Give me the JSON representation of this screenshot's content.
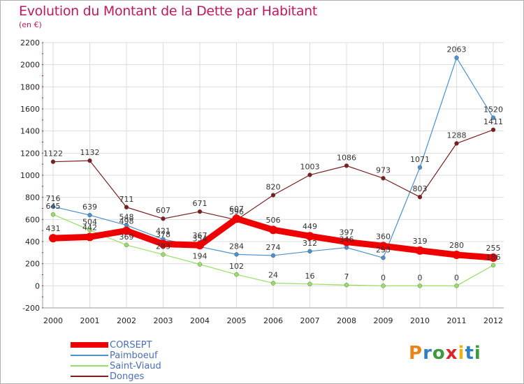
{
  "title": "Evolution du Montant de la Dette par Habitant",
  "subtitle": "(en €)",
  "logo": {
    "text": "Proxiti",
    "letter_colors": [
      "#e8841a",
      "#2e7fc4",
      "#3c9a3c",
      "#d8262b",
      "#e8b21a",
      "#2e7fc4",
      "#3c9a3c"
    ]
  },
  "chart_data": {
    "type": "line",
    "x": [
      "2000",
      "2001",
      "2002",
      "2003",
      "2004",
      "2005",
      "2006",
      "2007",
      "2008",
      "2009",
      "2010",
      "2011",
      "2012"
    ],
    "ylim": [
      -200,
      2200
    ],
    "yticks": [
      -200,
      0,
      200,
      400,
      600,
      800,
      1000,
      1200,
      1400,
      1600,
      1800,
      2000,
      2200
    ],
    "grid": true,
    "legend_position": "bottom-left",
    "series": [
      {
        "name": "CORSEPT",
        "color": "#ee0000",
        "values": [
          431,
          442,
          498,
          378,
          367,
          607,
          506,
          449,
          397,
          360,
          319,
          280,
          255
        ]
      },
      {
        "name": "Paimboeuf",
        "color": "#4d90cc",
        "values": [
          716,
          639,
          548,
          421,
          354,
          284,
          274,
          312,
          346,
          253,
          1071,
          2063,
          1520
        ]
      },
      {
        "name": "Saint-Viaud",
        "color": "#99dd66",
        "values": [
          645,
          504,
          369,
          283,
          194,
          102,
          24,
          16,
          7,
          0,
          0,
          0,
          186
        ]
      },
      {
        "name": "Donges",
        "color": "#7a1f1f",
        "values": [
          1122,
          1132,
          711,
          607,
          671,
          596,
          820,
          1003,
          1086,
          973,
          803,
          1288,
          1411
        ]
      }
    ]
  }
}
